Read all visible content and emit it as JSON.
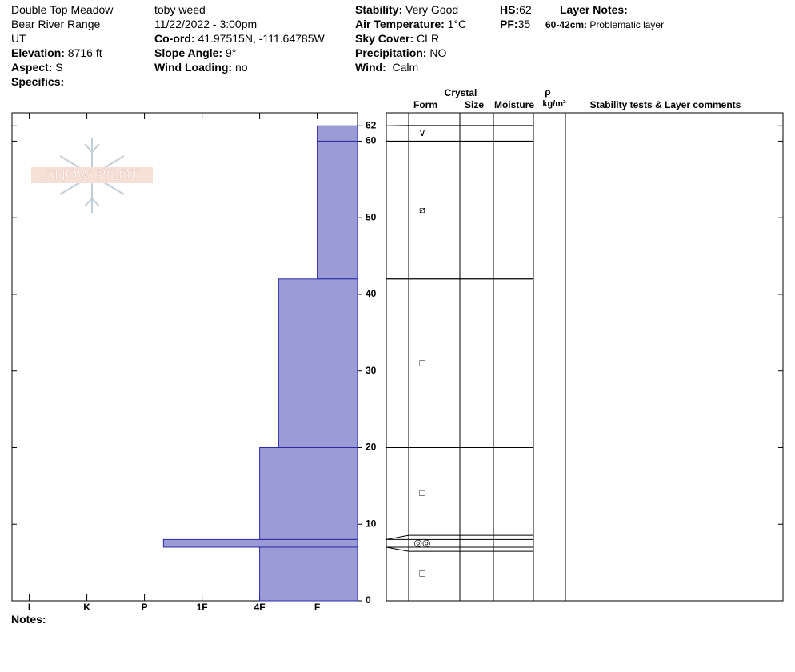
{
  "header": {
    "location": "Double Top Meadow",
    "range": "Bear River Range",
    "state": "UT",
    "elevation_label": "Elevation:",
    "elevation": "8716 ft",
    "aspect_label": "Aspect:",
    "aspect": "S",
    "specifics_label": "Specifics:",
    "observer": "toby weed",
    "datetime": "11/22/2022 - 3:00pm",
    "coord_label": "Co-ord:",
    "coord": "41.97515N, -111.64785W",
    "slope_label": "Slope Angle:",
    "slope": "9°",
    "wind_loading_label": "Wind Loading:",
    "wind_loading": "no",
    "stability_label": "Stability:",
    "stability": "Very Good",
    "air_temp_label": "Air Temperature:",
    "air_temp": "1°C",
    "sky_label": "Sky Cover:",
    "sky": "CLR",
    "precip_label": "Precipitation:",
    "precip": "NO",
    "wind_label": "Wind:",
    "wind": "Calm",
    "hs_label": "HS:",
    "hs": "62",
    "pf_label": "PF:",
    "pf": "35",
    "layer_notes_label": "Layer Notes:",
    "layer_note_range": "60-42cm:",
    "layer_note": "Problematic layer"
  },
  "logo": "SNOW PILOT",
  "notes_label": "Notes:",
  "table_header": {
    "crystal": "Crystal",
    "form": "Form",
    "size": "Size",
    "moisture": "Moisture",
    "rho": "ρ",
    "density_unit": "kg/m³",
    "comments": "Stability tests & Layer comments"
  },
  "chart_data": {
    "type": "snow-profile",
    "xlim": [
      6.3,
      0.3
    ],
    "xticks": [
      {
        "value": 6,
        "label": "I"
      },
      {
        "value": 5,
        "label": "K"
      },
      {
        "value": 4,
        "label": "P"
      },
      {
        "value": 3,
        "label": "1F"
      },
      {
        "value": 2,
        "label": "4F"
      },
      {
        "value": 1,
        "label": "F"
      }
    ],
    "ylim": [
      0,
      63.7
    ],
    "yticks": [
      0,
      10,
      20,
      30,
      40,
      50,
      60,
      62
    ],
    "color": "#9b9bd6",
    "layers": [
      {
        "top": 62,
        "bottom": 60,
        "hardness": 1,
        "form": "∨"
      },
      {
        "top": 60,
        "bottom": 42,
        "hardness": 1,
        "form": "⧄"
      },
      {
        "top": 42,
        "bottom": 20,
        "hardness": 1.67,
        "form": "□"
      },
      {
        "top": 20,
        "bottom": 8,
        "hardness": 2,
        "form": "□"
      },
      {
        "top": 8,
        "bottom": 7,
        "hardness": 3.67,
        "form": "◎◎"
      },
      {
        "top": 7,
        "bottom": 0,
        "hardness": 2,
        "form": "□"
      }
    ]
  }
}
